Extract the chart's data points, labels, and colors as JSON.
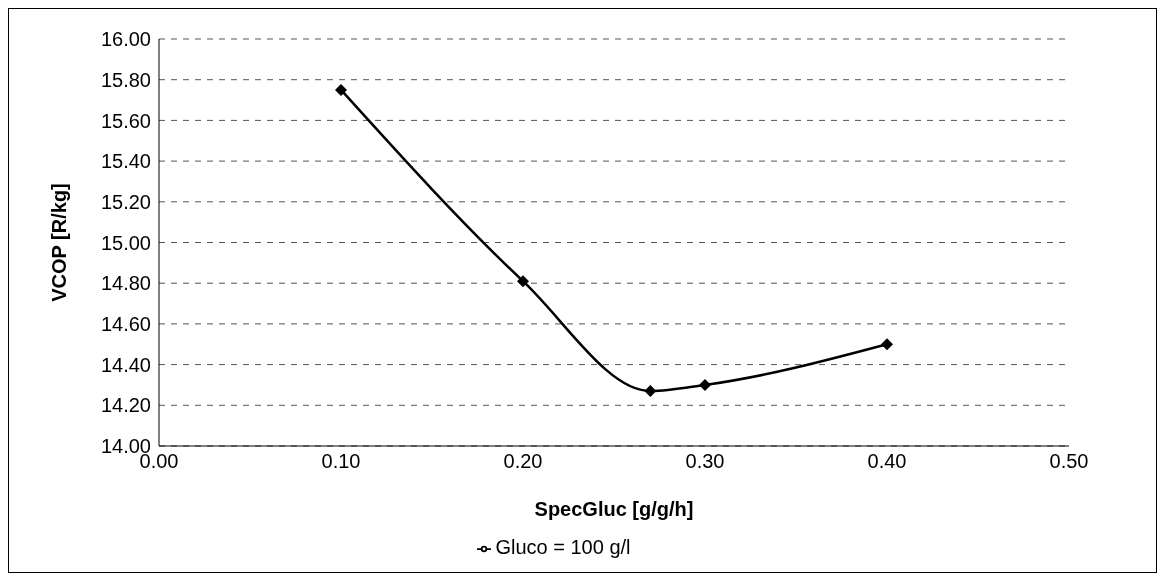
{
  "chart_data": {
    "type": "line",
    "xlabel": "SpecGluc [g/g/h]",
    "ylabel": "VCOP [R/kg]",
    "x": [
      0.1,
      0.2,
      0.27,
      0.3,
      0.4
    ],
    "series": [
      {
        "name": "Gluco = 100 g/l",
        "color": "#000000",
        "values": [
          15.75,
          14.81,
          14.27,
          14.3,
          14.5
        ]
      }
    ],
    "xlim": [
      0,
      0.5
    ],
    "xticks": [
      {
        "value": 0,
        "label": "0.00"
      },
      {
        "value": 0.1,
        "label": "0.10"
      },
      {
        "value": 0.2,
        "label": "0.20"
      },
      {
        "value": 0.3,
        "label": "0.30"
      },
      {
        "value": 0.4,
        "label": "0.40"
      },
      {
        "value": 0.5,
        "label": "0.50"
      }
    ],
    "ylim": [
      14,
      16
    ],
    "yticks": [
      {
        "value": 14,
        "label": "14.00"
      },
      {
        "value": 14.2,
        "label": "14.20"
      },
      {
        "value": 14.4,
        "label": "14.40"
      },
      {
        "value": 14.6,
        "label": "14.60"
      },
      {
        "value": 14.8,
        "label": "14.80"
      },
      {
        "value": 15,
        "label": "15.00"
      },
      {
        "value": 15.2,
        "label": "15.20"
      },
      {
        "value": 15.4,
        "label": "15.40"
      },
      {
        "value": 15.6,
        "label": "15.60"
      },
      {
        "value": 15.8,
        "label": "15.80"
      },
      {
        "value": 16,
        "label": "16.00"
      }
    ],
    "grid": "y",
    "legend": "bottom",
    "marker": "diamond",
    "line_style": "solid"
  }
}
